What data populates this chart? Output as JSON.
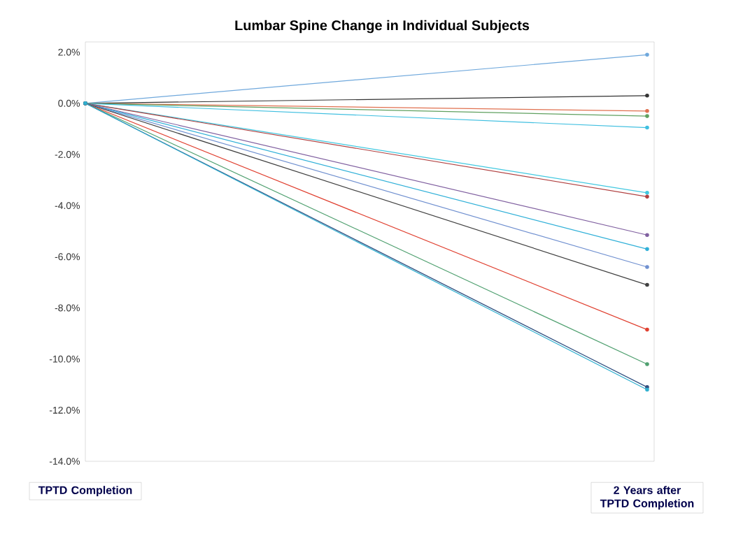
{
  "chart_data": {
    "type": "line",
    "title": "Lumbar Spine Change in Individual Subjects",
    "categories": [
      "TPTD Completion",
      "2 Years after TPTD Completion"
    ],
    "series": [
      {
        "color": "#6fa8dc",
        "values": [
          0,
          1.9
        ]
      },
      {
        "color": "#333333",
        "values": [
          0,
          0.3
        ]
      },
      {
        "color": "#e0704f",
        "values": [
          0,
          -0.3
        ]
      },
      {
        "color": "#5fa05f",
        "values": [
          0,
          -0.5
        ]
      },
      {
        "color": "#3fbfe0",
        "values": [
          0,
          -0.95
        ]
      },
      {
        "color": "#40c8e0",
        "values": [
          0,
          -3.5
        ]
      },
      {
        "color": "#b04040",
        "values": [
          0,
          -3.65
        ]
      },
      {
        "color": "#8060a0",
        "values": [
          0,
          -5.15
        ]
      },
      {
        "color": "#30b0d8",
        "values": [
          0,
          -5.7
        ]
      },
      {
        "color": "#7090d0",
        "values": [
          0,
          -6.4
        ]
      },
      {
        "color": "#404040",
        "values": [
          0,
          -7.1
        ]
      },
      {
        "color": "#e04030",
        "values": [
          0,
          -8.85
        ]
      },
      {
        "color": "#50a070",
        "values": [
          0,
          -10.2
        ]
      },
      {
        "color": "#305080",
        "values": [
          0,
          -11.1
        ]
      },
      {
        "color": "#30b0d0",
        "values": [
          0,
          -11.2
        ]
      }
    ],
    "ylim": [
      -14,
      2.4
    ],
    "yticks": [
      {
        "value": 2,
        "label": "2.0%"
      },
      {
        "value": 0,
        "label": "0.0%"
      },
      {
        "value": -2,
        "label": "-2.0%"
      },
      {
        "value": -4,
        "label": "-4.0%"
      },
      {
        "value": -6,
        "label": "-6.0%"
      },
      {
        "value": -8,
        "label": "-8.0%"
      },
      {
        "value": -10,
        "label": "-10.0%"
      },
      {
        "value": -12,
        "label": "-12.0%"
      },
      {
        "value": -14,
        "label": "-14.0%"
      }
    ],
    "marker": "circle",
    "grid": false
  }
}
